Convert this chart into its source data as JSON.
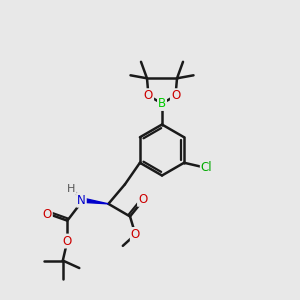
{
  "bg_color": "#e8e8e8",
  "bond_color": "#1a1a1a",
  "bond_width": 1.8,
  "atom_colors": {
    "B": "#00cc00",
    "O": "#cc0000",
    "N": "#0000cc",
    "Cl": "#00aa00",
    "C": "#1a1a1a",
    "H": "#555555"
  },
  "figsize": [
    3.0,
    3.0
  ],
  "dpi": 100
}
